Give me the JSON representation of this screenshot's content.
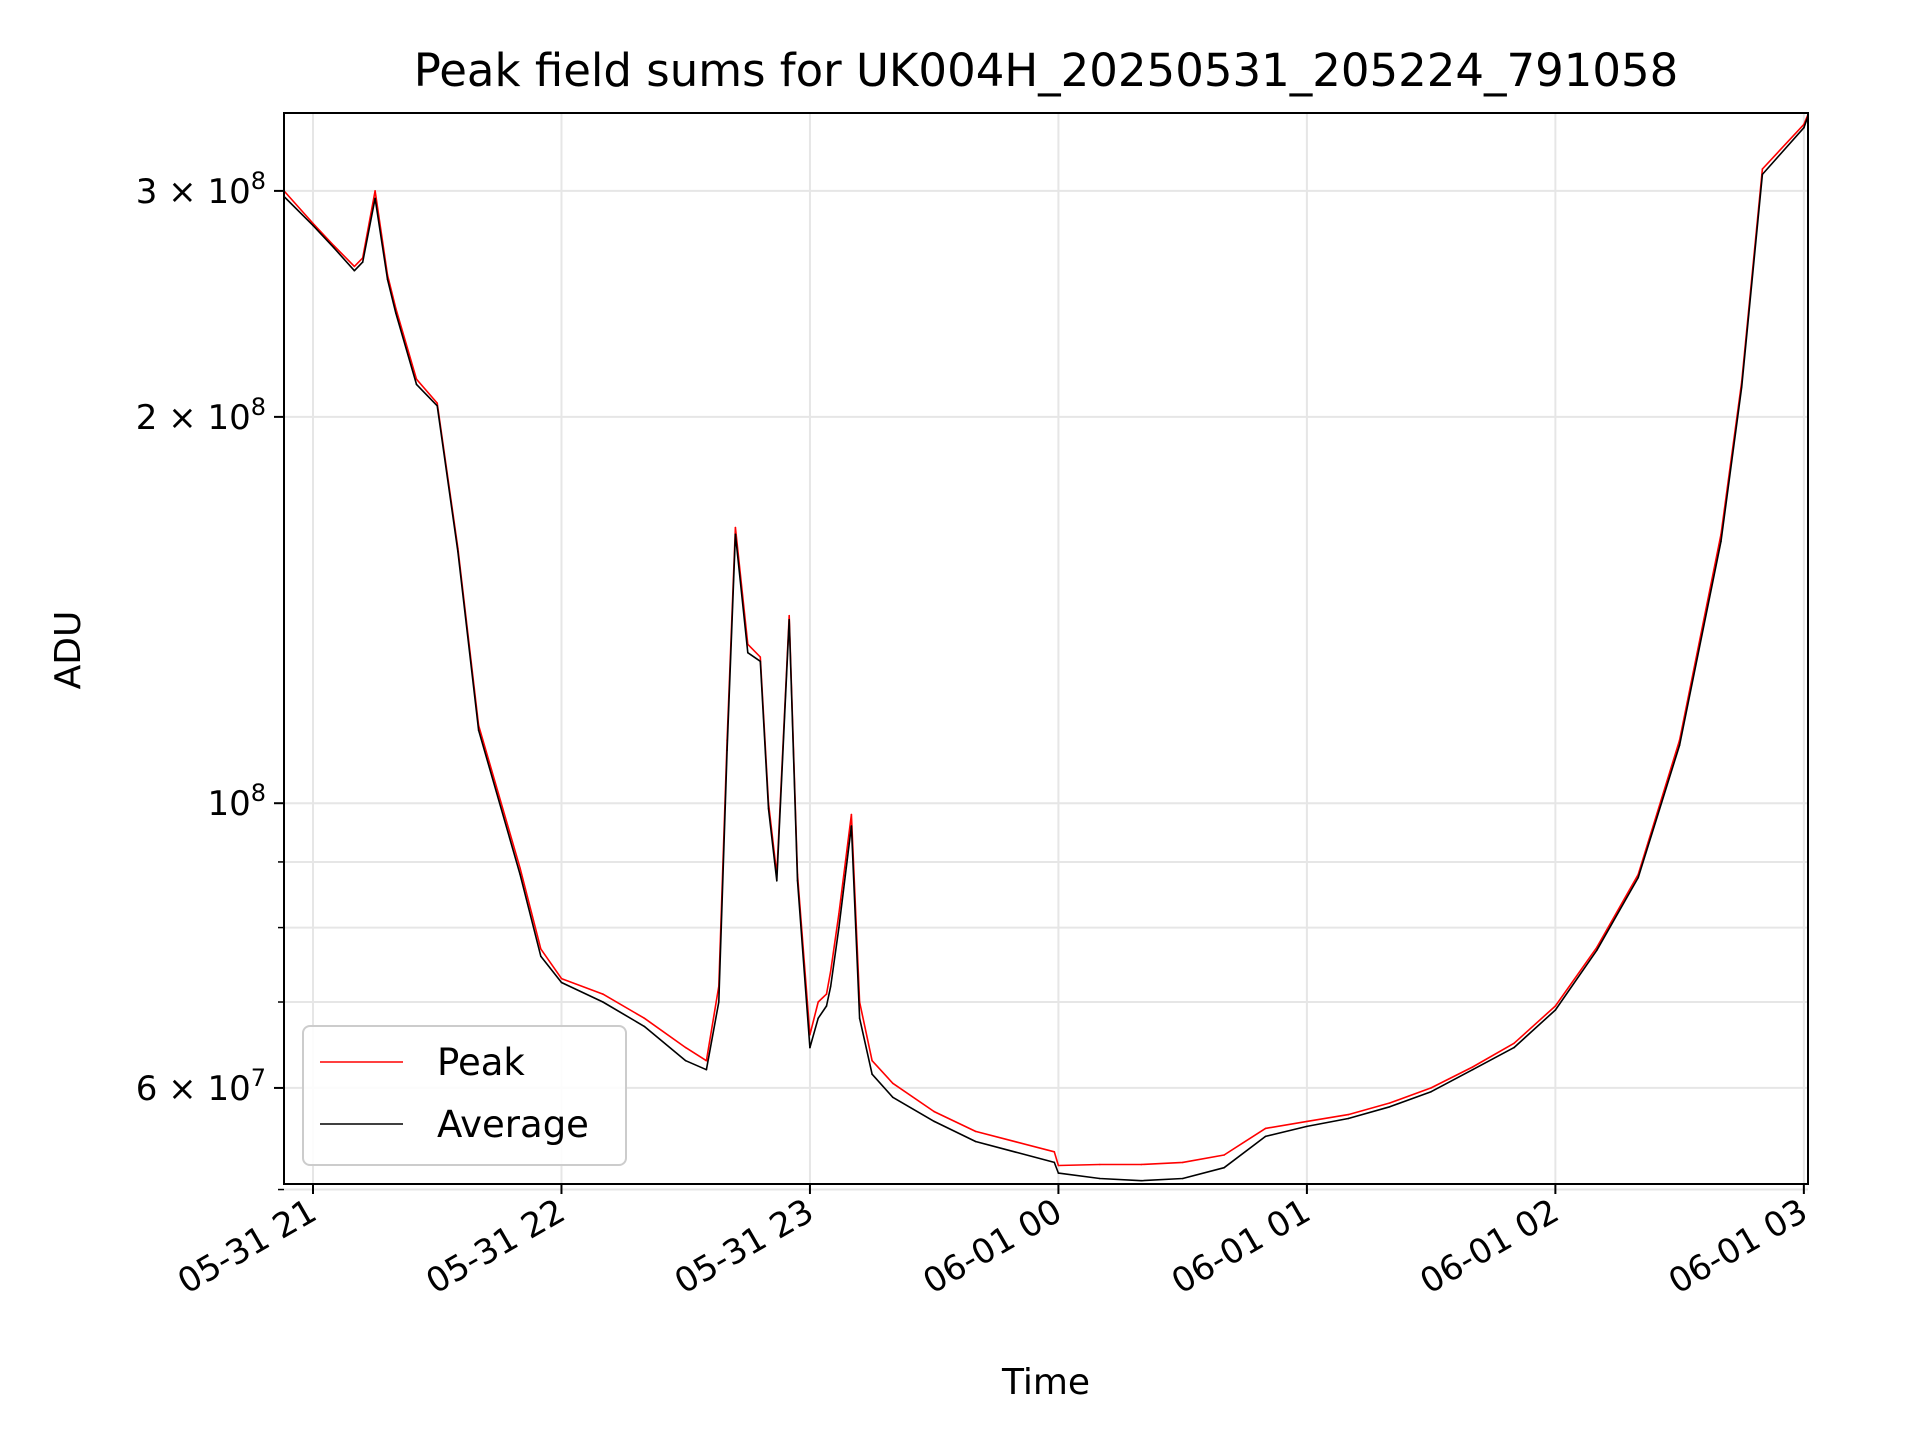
{
  "chart_data": {
    "type": "line",
    "title": "Peak field sums for UK004H_20250531_205224_791058",
    "xlabel": "Time",
    "ylabel": "ADU",
    "y_scale": "log",
    "ylim": [
      50500000,
      345000000
    ],
    "xlim": [
      "05-31 20:53",
      "06-01 03:01"
    ],
    "grid": true,
    "legend_position": "lower-left",
    "x_ticks": [
      "05-31 21",
      "05-31 22",
      "05-31 23",
      "06-01 00",
      "06-01 01",
      "06-01 02",
      "06-01 03"
    ],
    "y_ticks": [
      {
        "value": 60000000,
        "label": "6 × 10^7"
      },
      {
        "value": 100000000,
        "label": "10^8"
      },
      {
        "value": 200000000,
        "label": "2 × 10^8"
      },
      {
        "value": 300000000,
        "label": "3 × 10^8"
      }
    ],
    "x": [
      "20:53",
      "21:00",
      "21:05",
      "21:10",
      "21:12",
      "21:15",
      "21:18",
      "21:20",
      "21:25",
      "21:30",
      "21:35",
      "21:40",
      "21:50",
      "21:55",
      "22:00",
      "22:10",
      "22:20",
      "22:30",
      "22:35",
      "22:38",
      "22:40",
      "22:42",
      "22:45",
      "22:48",
      "22:50",
      "22:52",
      "22:55",
      "22:57",
      "23:00",
      "23:02",
      "23:04",
      "23:05",
      "23:07",
      "23:10",
      "23:12",
      "23:15",
      "23:20",
      "23:30",
      "23:40",
      "23:59",
      "00:00",
      "00:10",
      "00:20",
      "00:30",
      "00:40",
      "00:50",
      "01:00",
      "01:10",
      "01:20",
      "01:30",
      "01:40",
      "01:50",
      "02:00",
      "02:10",
      "02:20",
      "02:30",
      "02:40",
      "02:45",
      "02:50",
      "03:00",
      "03:01"
    ],
    "series": [
      {
        "name": "Peak",
        "color": "#ff0000",
        "values": [
          300000000,
          283000000,
          272000000,
          262000000,
          266000000,
          300000000,
          258000000,
          243000000,
          214000000,
          205000000,
          158000000,
          115000000,
          89000000,
          77000000,
          73000000,
          71000000,
          68000000,
          64500000,
          63000000,
          72000000,
          112000000,
          164000000,
          133000000,
          130000000,
          100000000,
          88000000,
          140000000,
          88000000,
          66000000,
          70000000,
          71000000,
          74000000,
          82000000,
          98000000,
          70000000,
          63000000,
          60500000,
          57500000,
          55500000,
          53500000,
          52200000,
          52300000,
          52300000,
          52500000,
          53200000,
          55800000,
          56500000,
          57200000,
          58400000,
          60000000,
          62300000,
          65000000,
          69500000,
          77200000,
          88000000,
          112000000,
          162000000,
          213000000,
          312000000,
          338000000,
          344000000
        ]
      },
      {
        "name": "Average",
        "color": "#000000",
        "values": [
          297000000,
          282000000,
          271000000,
          260000000,
          264000000,
          296000000,
          256000000,
          241000000,
          212000000,
          204000000,
          157000000,
          114000000,
          88000000,
          76000000,
          72500000,
          70000000,
          67000000,
          63000000,
          62000000,
          70000000,
          110000000,
          162000000,
          131000000,
          129000000,
          99000000,
          87000000,
          139000000,
          87000000,
          64500000,
          68000000,
          69500000,
          72000000,
          80000000,
          96000000,
          68000000,
          61500000,
          59000000,
          56500000,
          54500000,
          52500000,
          51500000,
          51000000,
          50800000,
          51000000,
          52000000,
          55000000,
          56000000,
          56800000,
          58000000,
          59600000,
          62000000,
          64500000,
          69000000,
          76800000,
          87500000,
          111000000,
          160000000,
          211000000,
          309000000,
          336000000,
          343000000
        ]
      }
    ]
  }
}
